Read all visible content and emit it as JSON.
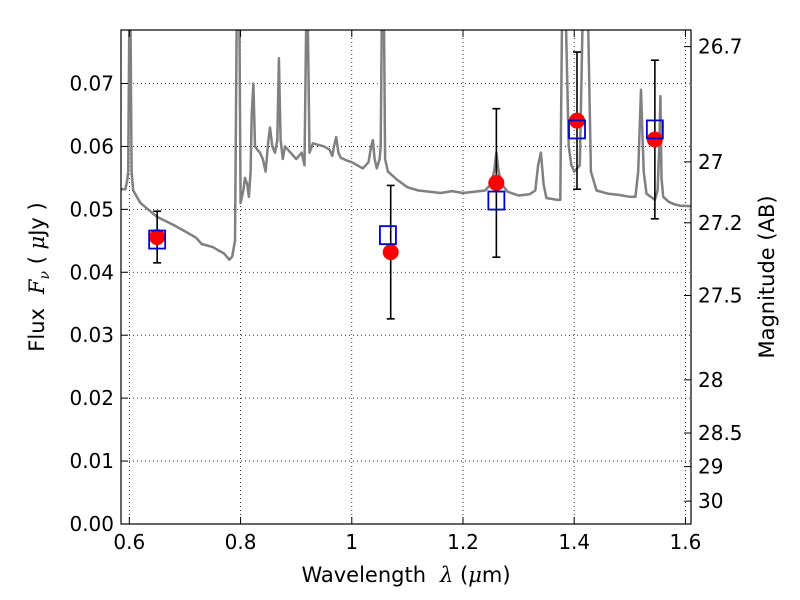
{
  "chart_data": {
    "type": "scatter",
    "xlabel_text": "Wavelength",
    "xlabel_symbol": "λ",
    "xlabel_unit_open": " (",
    "xlabel_unit_mu": "μ",
    "xlabel_unit_rest": "m)",
    "ylabel_text": "Flux",
    "ylabel_symbol": "F",
    "ylabel_subscript": "ν",
    "ylabel_unit_open": " ( ",
    "ylabel_unit_mu": "μ",
    "ylabel_unit_rest": "Jy )",
    "y2label": "Magnitude (AB)",
    "xlim": [
      0.585,
      1.61
    ],
    "ylim": [
      0.0,
      0.0785
    ],
    "grid": true,
    "x_ticks": [
      {
        "value": 0.6,
        "label": "0.6"
      },
      {
        "value": 0.8,
        "label": "0.8"
      },
      {
        "value": 1.0,
        "label": "1"
      },
      {
        "value": 1.2,
        "label": "1.2"
      },
      {
        "value": 1.4,
        "label": "1.4"
      },
      {
        "value": 1.6,
        "label": "1.6"
      }
    ],
    "y_ticks": [
      {
        "value": 0.0,
        "label": "0.00"
      },
      {
        "value": 0.01,
        "label": "0.01"
      },
      {
        "value": 0.02,
        "label": "0.02"
      },
      {
        "value": 0.03,
        "label": "0.03"
      },
      {
        "value": 0.04,
        "label": "0.04"
      },
      {
        "value": 0.05,
        "label": "0.05"
      },
      {
        "value": 0.06,
        "label": "0.06"
      },
      {
        "value": 0.07,
        "label": "0.07"
      }
    ],
    "mag_ticks": [
      {
        "mag": 26.7,
        "label": "26.7"
      },
      {
        "mag": 27.0,
        "label": "27"
      },
      {
        "mag": 27.2,
        "label": "27.2"
      },
      {
        "mag": 27.5,
        "label": "27.5"
      },
      {
        "mag": 28.0,
        "label": "28"
      },
      {
        "mag": 28.5,
        "label": "28.5"
      },
      {
        "mag": 29.0,
        "label": "29"
      },
      {
        "mag": 30.0,
        "label": "30"
      }
    ],
    "observed_points": {
      "color": "#ff0000",
      "marker": "circle",
      "points": [
        {
          "x": 0.65,
          "y": 0.0456,
          "yerr": 0.0041
        },
        {
          "x": 1.07,
          "y": 0.0432,
          "yerr": 0.0106
        },
        {
          "x": 1.26,
          "y": 0.0542,
          "yerr": 0.0118
        },
        {
          "x": 1.405,
          "y": 0.0641,
          "yerr": 0.0109
        },
        {
          "x": 1.545,
          "y": 0.0611,
          "yerr": 0.0126
        }
      ]
    },
    "model_points": {
      "color": "#0000cc",
      "marker": "square",
      "points": [
        {
          "x": 0.65,
          "y": 0.0452
        },
        {
          "x": 1.065,
          "y": 0.0459
        },
        {
          "x": 1.26,
          "y": 0.0514
        },
        {
          "x": 1.405,
          "y": 0.0627
        },
        {
          "x": 1.545,
          "y": 0.0627
        }
      ]
    },
    "model_spectrum": {
      "color": "#808080",
      "points": [
        [
          0.585,
          0.0532
        ],
        [
          0.593,
          0.0532
        ],
        [
          0.596,
          0.0545
        ],
        [
          0.598,
          0.056
        ],
        [
          0.6,
          0.08
        ],
        [
          0.602,
          0.08
        ],
        [
          0.604,
          0.056
        ],
        [
          0.607,
          0.053
        ],
        [
          0.62,
          0.051
        ],
        [
          0.65,
          0.0488
        ],
        [
          0.68,
          0.0475
        ],
        [
          0.7,
          0.0465
        ],
        [
          0.72,
          0.0455
        ],
        [
          0.73,
          0.0445
        ],
        [
          0.75,
          0.044
        ],
        [
          0.76,
          0.0435
        ],
        [
          0.77,
          0.043
        ],
        [
          0.78,
          0.042
        ],
        [
          0.785,
          0.0425
        ],
        [
          0.79,
          0.045
        ],
        [
          0.793,
          0.08
        ],
        [
          0.798,
          0.08
        ],
        [
          0.8,
          0.051
        ],
        [
          0.805,
          0.053
        ],
        [
          0.808,
          0.055
        ],
        [
          0.812,
          0.054
        ],
        [
          0.815,
          0.052
        ],
        [
          0.818,
          0.056
        ],
        [
          0.82,
          0.065
        ],
        [
          0.823,
          0.07
        ],
        [
          0.826,
          0.06
        ],
        [
          0.83,
          0.0595
        ],
        [
          0.835,
          0.059
        ],
        [
          0.84,
          0.058
        ],
        [
          0.845,
          0.056
        ],
        [
          0.85,
          0.061
        ],
        [
          0.853,
          0.063
        ],
        [
          0.857,
          0.06
        ],
        [
          0.862,
          0.059
        ],
        [
          0.866,
          0.061
        ],
        [
          0.869,
          0.074
        ],
        [
          0.872,
          0.061
        ],
        [
          0.876,
          0.058
        ],
        [
          0.88,
          0.06
        ],
        [
          0.89,
          0.059
        ],
        [
          0.9,
          0.058
        ],
        [
          0.91,
          0.059
        ],
        [
          0.915,
          0.057
        ],
        [
          0.918,
          0.08
        ],
        [
          0.921,
          0.08
        ],
        [
          0.924,
          0.059
        ],
        [
          0.93,
          0.0605
        ],
        [
          0.95,
          0.06
        ],
        [
          0.96,
          0.0595
        ],
        [
          0.965,
          0.0585
        ],
        [
          0.968,
          0.06
        ],
        [
          0.972,
          0.0615
        ],
        [
          0.976,
          0.059
        ],
        [
          0.98,
          0.0582
        ],
        [
          0.99,
          0.0578
        ],
        [
          1.0,
          0.0575
        ],
        [
          1.01,
          0.057
        ],
        [
          1.02,
          0.0565
        ],
        [
          1.03,
          0.0575
        ],
        [
          1.035,
          0.06
        ],
        [
          1.038,
          0.061
        ],
        [
          1.041,
          0.058
        ],
        [
          1.045,
          0.0565
        ],
        [
          1.05,
          0.058
        ],
        [
          1.052,
          0.06
        ],
        [
          1.054,
          0.08
        ],
        [
          1.058,
          0.08
        ],
        [
          1.06,
          0.058
        ],
        [
          1.065,
          0.056
        ],
        [
          1.08,
          0.0548
        ],
        [
          1.1,
          0.0535
        ],
        [
          1.12,
          0.053
        ],
        [
          1.14,
          0.0528
        ],
        [
          1.16,
          0.0526
        ],
        [
          1.18,
          0.0529
        ],
        [
          1.2,
          0.0526
        ],
        [
          1.22,
          0.0528
        ],
        [
          1.24,
          0.053
        ],
        [
          1.25,
          0.054
        ],
        [
          1.256,
          0.056
        ],
        [
          1.26,
          0.059
        ],
        [
          1.264,
          0.056
        ],
        [
          1.27,
          0.054
        ],
        [
          1.28,
          0.0528
        ],
        [
          1.3,
          0.0522
        ],
        [
          1.32,
          0.0524
        ],
        [
          1.33,
          0.053
        ],
        [
          1.335,
          0.057
        ],
        [
          1.34,
          0.059
        ],
        [
          1.345,
          0.054
        ],
        [
          1.35,
          0.0518
        ],
        [
          1.37,
          0.0515
        ],
        [
          1.375,
          0.0515
        ],
        [
          1.378,
          0.08
        ],
        [
          1.385,
          0.08
        ],
        [
          1.39,
          0.06
        ],
        [
          1.395,
          0.057
        ],
        [
          1.4,
          0.056
        ],
        [
          1.41,
          0.057
        ],
        [
          1.415,
          0.08
        ],
        [
          1.425,
          0.08
        ],
        [
          1.43,
          0.056
        ],
        [
          1.44,
          0.053
        ],
        [
          1.46,
          0.0525
        ],
        [
          1.48,
          0.0523
        ],
        [
          1.5,
          0.052
        ],
        [
          1.51,
          0.052
        ],
        [
          1.515,
          0.056
        ],
        [
          1.52,
          0.069
        ],
        [
          1.525,
          0.056
        ],
        [
          1.53,
          0.0525
        ],
        [
          1.545,
          0.0515
        ],
        [
          1.55,
          0.053
        ],
        [
          1.553,
          0.06
        ],
        [
          1.555,
          0.068
        ],
        [
          1.557,
          0.055
        ],
        [
          1.56,
          0.052
        ],
        [
          1.57,
          0.0512
        ],
        [
          1.58,
          0.0508
        ],
        [
          1.59,
          0.0506
        ],
        [
          1.61,
          0.0505
        ]
      ]
    }
  }
}
